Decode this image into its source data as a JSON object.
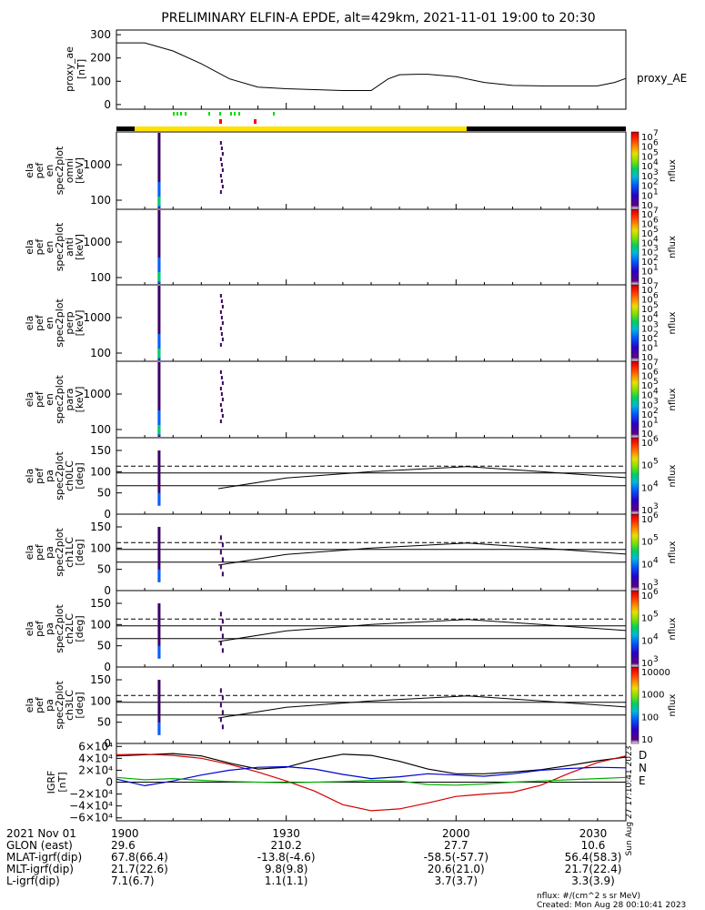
{
  "title": "PRELIMINARY ELFIN-A EPDE, alt=429km, 2021-11-01 19:00 to 20:30",
  "chart_data": [
    {
      "type": "line",
      "panel": "proxy_ae",
      "ylabel": [
        "proxy_ae",
        "[nT]"
      ],
      "yticks": [
        "300",
        "200",
        "100",
        "0"
      ],
      "ylim": [
        -20,
        320
      ],
      "legend": "proxy_AE",
      "x_minutes": [
        0,
        5,
        10,
        15,
        20,
        25,
        30,
        35,
        40,
        45,
        48,
        50,
        53,
        55,
        60,
        65,
        70,
        75,
        80,
        85,
        88,
        90
      ],
      "values": [
        265,
        265,
        230,
        175,
        110,
        75,
        68,
        64,
        60,
        60,
        110,
        128,
        130,
        130,
        120,
        95,
        82,
        80,
        80,
        80,
        95,
        112
      ]
    },
    {
      "type": "heatmap",
      "panel": "spec2plot omni",
      "ylabel": [
        "ela",
        "pef",
        "en",
        "spec2plot",
        "omni",
        "[keV]"
      ],
      "yticks": [
        "1000",
        "100"
      ],
      "colorbar": {
        "label": "nflux",
        "ticks": [
          "10",
          "10",
          "10",
          "10",
          "10",
          "10",
          "10",
          "10",
          "10",
          "10"
        ],
        "exponents": [
          "7",
          "6",
          "5",
          "4",
          "3",
          "2",
          "1",
          "",
          "",
          ""
        ]
      }
    },
    {
      "type": "heatmap",
      "panel": "spec2plot anti",
      "ylabel": [
        "ela",
        "pef",
        "en",
        "spec2plot",
        "anti",
        "[keV]"
      ],
      "yticks": [
        "1000",
        "100"
      ],
      "colorbar": {
        "label": "nflux"
      }
    },
    {
      "type": "heatmap",
      "panel": "spec2plot perp",
      "ylabel": [
        "ela",
        "pef",
        "en",
        "spec2plot",
        "perp",
        "[keV]"
      ],
      "yticks": [
        "1000",
        "100"
      ],
      "colorbar": {
        "label": "nflux"
      }
    },
    {
      "type": "heatmap",
      "panel": "spec2plot para",
      "ylabel": [
        "ela",
        "pef",
        "en",
        "spec2plot",
        "para",
        "[keV]"
      ],
      "yticks": [
        "1000",
        "100"
      ],
      "colorbar": {
        "label": "nflux"
      }
    },
    {
      "type": "heatmap",
      "panel": "spec2plot ch0LC",
      "ylabel": [
        "ela",
        "pef",
        "pa",
        "spec2plot",
        "ch0LC",
        "[deg]"
      ],
      "yticks": [
        "150",
        "100",
        "50",
        "0"
      ],
      "ylim": [
        0,
        180
      ],
      "colorbar": {
        "label": "nflux"
      }
    },
    {
      "type": "heatmap",
      "panel": "spec2plot ch1LC",
      "ylabel": [
        "ela",
        "pef",
        "pa",
        "spec2plot",
        "ch1LC",
        "[deg]"
      ],
      "yticks": [
        "150",
        "100",
        "50",
        "0"
      ],
      "ylim": [
        0,
        180
      ],
      "colorbar": {
        "label": "nflux"
      }
    },
    {
      "type": "heatmap",
      "panel": "spec2plot ch2LC",
      "ylabel": [
        "ela",
        "pef",
        "pa",
        "spec2plot",
        "ch2LC",
        "[deg]"
      ],
      "yticks": [
        "150",
        "100",
        "50",
        "0"
      ],
      "ylim": [
        0,
        180
      ],
      "colorbar": {
        "label": "nflux"
      }
    },
    {
      "type": "heatmap",
      "panel": "spec2plot ch3LC",
      "ylabel": [
        "ela",
        "pef",
        "pa",
        "spec2plot",
        "ch3LC",
        "[deg]"
      ],
      "yticks": [
        "150",
        "100",
        "50",
        "0"
      ],
      "ylim": [
        0,
        180
      ],
      "colorbar": {
        "label": "nflux",
        "ticks": [
          "10000",
          "1000",
          "100",
          "10"
        ]
      }
    },
    {
      "type": "line",
      "panel": "IGRF",
      "ylabel": [
        "IGRF",
        "[nT]"
      ],
      "yticks": [
        "6×10⁴",
        "4×10⁴",
        "2×10⁴",
        "0",
        "−2×10⁴",
        "−4×10⁴",
        "−6×10⁴"
      ],
      "ylim": [
        -65000,
        65000
      ],
      "x_minutes": [
        0,
        5,
        10,
        15,
        20,
        25,
        30,
        35,
        40,
        45,
        50,
        55,
        60,
        65,
        70,
        75,
        80,
        85,
        90
      ],
      "series": [
        {
          "name": "D",
          "color": "#000000",
          "values": [
            44000,
            46000,
            48000,
            44000,
            32000,
            22000,
            25000,
            38000,
            47000,
            45000,
            35000,
            22000,
            14000,
            14000,
            17000,
            21000,
            28000,
            36000,
            42000
          ]
        },
        {
          "name": "",
          "color": "#d40000",
          "values": [
            46000,
            47000,
            45000,
            40000,
            30000,
            17000,
            2000,
            -15000,
            -38000,
            -48000,
            -45000,
            -35000,
            -24000,
            -20000,
            -17000,
            -5000,
            15000,
            33000,
            44000
          ]
        },
        {
          "name": "N",
          "color": "#0000d0",
          "values": [
            5000,
            -6000,
            2000,
            12000,
            20000,
            25000,
            26000,
            22000,
            13000,
            6000,
            9000,
            14000,
            12000,
            10000,
            14000,
            20000,
            23000,
            25000,
            24000
          ]
        },
        {
          "name": "E",
          "color": "#00b000",
          "values": [
            8000,
            4000,
            6000,
            3000,
            1000,
            0,
            -1000,
            0,
            1000,
            3000,
            2000,
            -4000,
            -5000,
            -3000,
            0,
            2000,
            4000,
            6000,
            8000
          ]
        }
      ]
    }
  ],
  "side_labels": {
    "igrf_legend": [
      "D",
      "N",
      "E"
    ],
    "side_stamp": "Sun Aug 27 17:10:41 2023"
  },
  "xaxis": {
    "tick_labels": [
      "1900",
      "1930",
      "2000",
      "2030"
    ]
  },
  "footer": {
    "rows": [
      {
        "label": "2021 Nov 01",
        "values": [
          "1900",
          "1930",
          "2000",
          "2030"
        ]
      },
      {
        "label": "GLON (east)",
        "values": [
          "29.6",
          "210.2",
          "27.7",
          "10.6"
        ]
      },
      {
        "label": "MLAT-igrf(dip)",
        "values": [
          "67.8(66.4)",
          "-13.8(-4.6)",
          "-58.5(-57.7)",
          "56.4(58.3)"
        ]
      },
      {
        "label": "MLT-igrf(dip)",
        "values": [
          "21.7(22.6)",
          "9.8(9.8)",
          "20.6(21.0)",
          "21.7(22.4)"
        ]
      },
      {
        "label": "L-igrf(dip)",
        "values": [
          "7.1(6.7)",
          "1.1(1.1)",
          "3.7(3.7)",
          "3.3(3.9)"
        ]
      }
    ],
    "units_note": "nflux: #/(cm^2 s sr MeV)",
    "created": "Created: Mon Aug 28 00:10:41 2023"
  },
  "colors": {
    "yellow_bar": "#ffe100",
    "black_bar": "#000000",
    "green_tick": "#00dd00",
    "red_tick": "#ff0000"
  }
}
